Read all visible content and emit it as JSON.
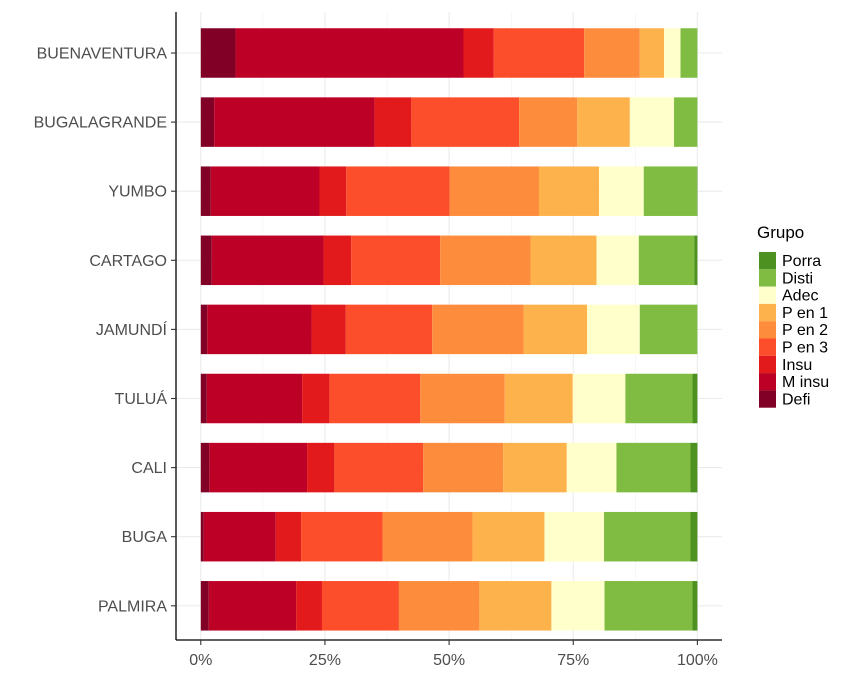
{
  "chart_data": {
    "type": "bar",
    "orientation": "horizontal",
    "stacked": true,
    "normalized": true,
    "title": "",
    "xlabel": "",
    "ylabel": "",
    "xlim": [
      0,
      1
    ],
    "x_ticks": [
      0,
      0.25,
      0.5,
      0.75,
      1
    ],
    "x_tick_labels": [
      "0%",
      "25%",
      "50%",
      "75%",
      "100%"
    ],
    "grid": true,
    "legend_position": "right",
    "legend_title": "Grupo",
    "categories": [
      "BUENAVENTURA",
      "BUGALAGRANDE",
      "YUMBO",
      "CARTAGO",
      "JAMUNDÍ",
      "TULUÁ",
      "CALI",
      "BUGA",
      "PALMIRA"
    ],
    "series": [
      {
        "name": "Defi",
        "color": "#800026",
        "values": [
          0.07,
          0.027,
          0.02,
          0.022,
          0.013,
          0.012,
          0.017,
          0.006,
          0.016
        ]
      },
      {
        "name": "M insu",
        "color": "#bd0026",
        "values": [
          0.459,
          0.323,
          0.219,
          0.225,
          0.21,
          0.192,
          0.197,
          0.145,
          0.176
        ]
      },
      {
        "name": "Insu",
        "color": "#e31a1c",
        "values": [
          0.061,
          0.074,
          0.054,
          0.056,
          0.069,
          0.055,
          0.055,
          0.051,
          0.052
        ]
      },
      {
        "name": "P en 3",
        "color": "#fc4e2a",
        "values": [
          0.182,
          0.217,
          0.208,
          0.179,
          0.174,
          0.183,
          0.179,
          0.164,
          0.155
        ]
      },
      {
        "name": "P en 2",
        "color": "#fd8d3c",
        "values": [
          0.112,
          0.117,
          0.18,
          0.182,
          0.184,
          0.17,
          0.161,
          0.181,
          0.162
        ]
      },
      {
        "name": "P en 1",
        "color": "#feb24c",
        "values": [
          0.049,
          0.106,
          0.121,
          0.133,
          0.128,
          0.137,
          0.128,
          0.145,
          0.145
        ]
      },
      {
        "name": "Adec",
        "color": "#ffffcc",
        "values": [
          0.033,
          0.089,
          0.09,
          0.085,
          0.106,
          0.106,
          0.1,
          0.12,
          0.107
        ]
      },
      {
        "name": "Disti",
        "color": "#7fbc41",
        "values": [
          0.034,
          0.047,
          0.107,
          0.112,
          0.116,
          0.135,
          0.149,
          0.174,
          0.177
        ]
      },
      {
        "name": "Porra",
        "color": "#4d9221",
        "values": [
          0.0,
          0.0,
          0.001,
          0.006,
          0.0,
          0.01,
          0.014,
          0.014,
          0.01
        ]
      }
    ],
    "legend_order": [
      "Porra",
      "Disti",
      "Adec",
      "P en 1",
      "P en 2",
      "P en 3",
      "Insu",
      "M insu",
      "Defi"
    ]
  }
}
